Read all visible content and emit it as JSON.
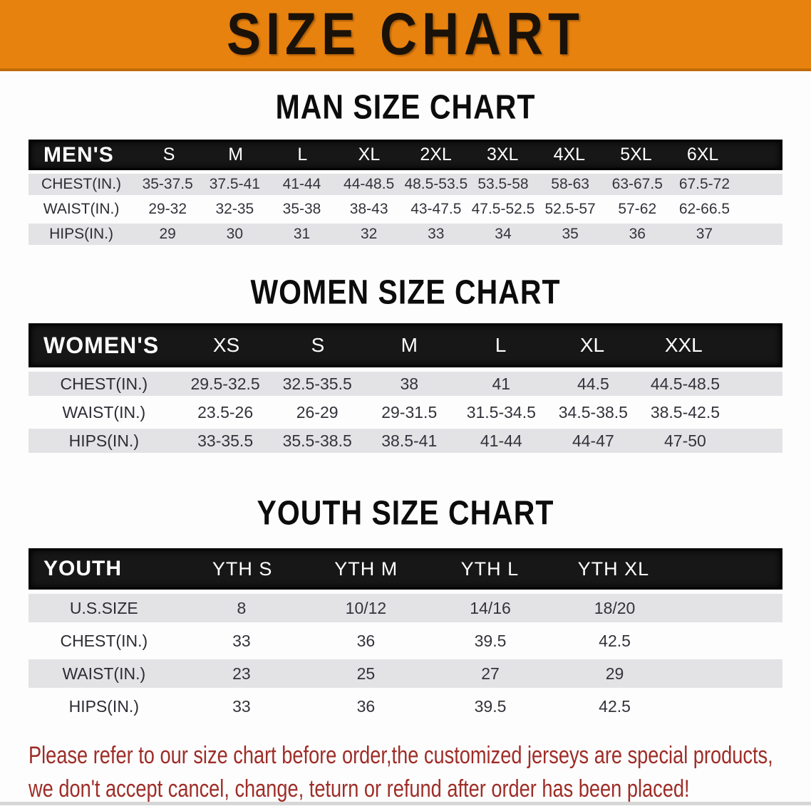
{
  "banner": {
    "title": "SIZE CHART"
  },
  "colors": {
    "banner_orange": "#E8820F",
    "header_bar_black": "#171717",
    "row_stripe_gray": "#E3E3E6",
    "disclaimer_red": "#9E2D27"
  },
  "sections": [
    {
      "heading": "MAN SIZE CHART",
      "table": {
        "header_label": "MEN'S",
        "columns": [
          "S",
          "M",
          "L",
          "XL",
          "2XL",
          "3XL",
          "4XL",
          "5XL",
          "6XL"
        ],
        "rows": [
          {
            "label": "CHEST(IN.)",
            "values": [
              "35-37.5",
              "37.5-41",
              "41-44",
              "44-48.5",
              "48.5-53.5",
              "53.5-58",
              "58-63",
              "63-67.5",
              "67.5-72"
            ]
          },
          {
            "label": "WAIST(IN.)",
            "values": [
              "29-32",
              "32-35",
              "35-38",
              "38-43",
              "43-47.5",
              "47.5-52.5",
              "52.5-57",
              "57-62",
              "62-66.5"
            ]
          },
          {
            "label": "HIPS(IN.)",
            "values": [
              "29",
              "30",
              "31",
              "32",
              "33",
              "34",
              "35",
              "36",
              "37"
            ]
          }
        ]
      }
    },
    {
      "heading": "WOMEN SIZE CHART",
      "table": {
        "header_label": "WOMEN'S",
        "columns": [
          "XS",
          "S",
          "M",
          "L",
          "XL",
          "XXL"
        ],
        "rows": [
          {
            "label": "CHEST(IN.)",
            "values": [
              "29.5-32.5",
              "32.5-35.5",
              "38",
              "41",
              "44.5",
              "44.5-48.5"
            ]
          },
          {
            "label": "WAIST(IN.)",
            "values": [
              "23.5-26",
              "26-29",
              "29-31.5",
              "31.5-34.5",
              "34.5-38.5",
              "38.5-42.5"
            ]
          },
          {
            "label": "HIPS(IN.)",
            "values": [
              "33-35.5",
              "35.5-38.5",
              "38.5-41",
              "41-44",
              "44-47",
              "47-50"
            ]
          }
        ]
      }
    },
    {
      "heading": "YOUTH SIZE CHART",
      "table": {
        "header_label": "YOUTH",
        "columns": [
          "YTH S",
          "YTH M",
          "YTH L",
          "YTH XL"
        ],
        "rows": [
          {
            "label": "U.S.SIZE",
            "values": [
              "8",
              "10/12",
              "14/16",
              "18/20"
            ]
          },
          {
            "label": "CHEST(IN.)",
            "values": [
              "33",
              "36",
              "39.5",
              "42.5"
            ]
          },
          {
            "label": "WAIST(IN.)",
            "values": [
              "23",
              "25",
              "27",
              "29"
            ]
          },
          {
            "label": "HIPS(IN.)",
            "values": [
              "33",
              "36",
              "39.5",
              "42.5"
            ]
          }
        ]
      }
    }
  ],
  "disclaimer": {
    "line1": "Please refer to our size chart before order,the customized jerseys are special products,",
    "line2": "we don't accept cancel, change, teturn or refund after order has been placed!"
  }
}
